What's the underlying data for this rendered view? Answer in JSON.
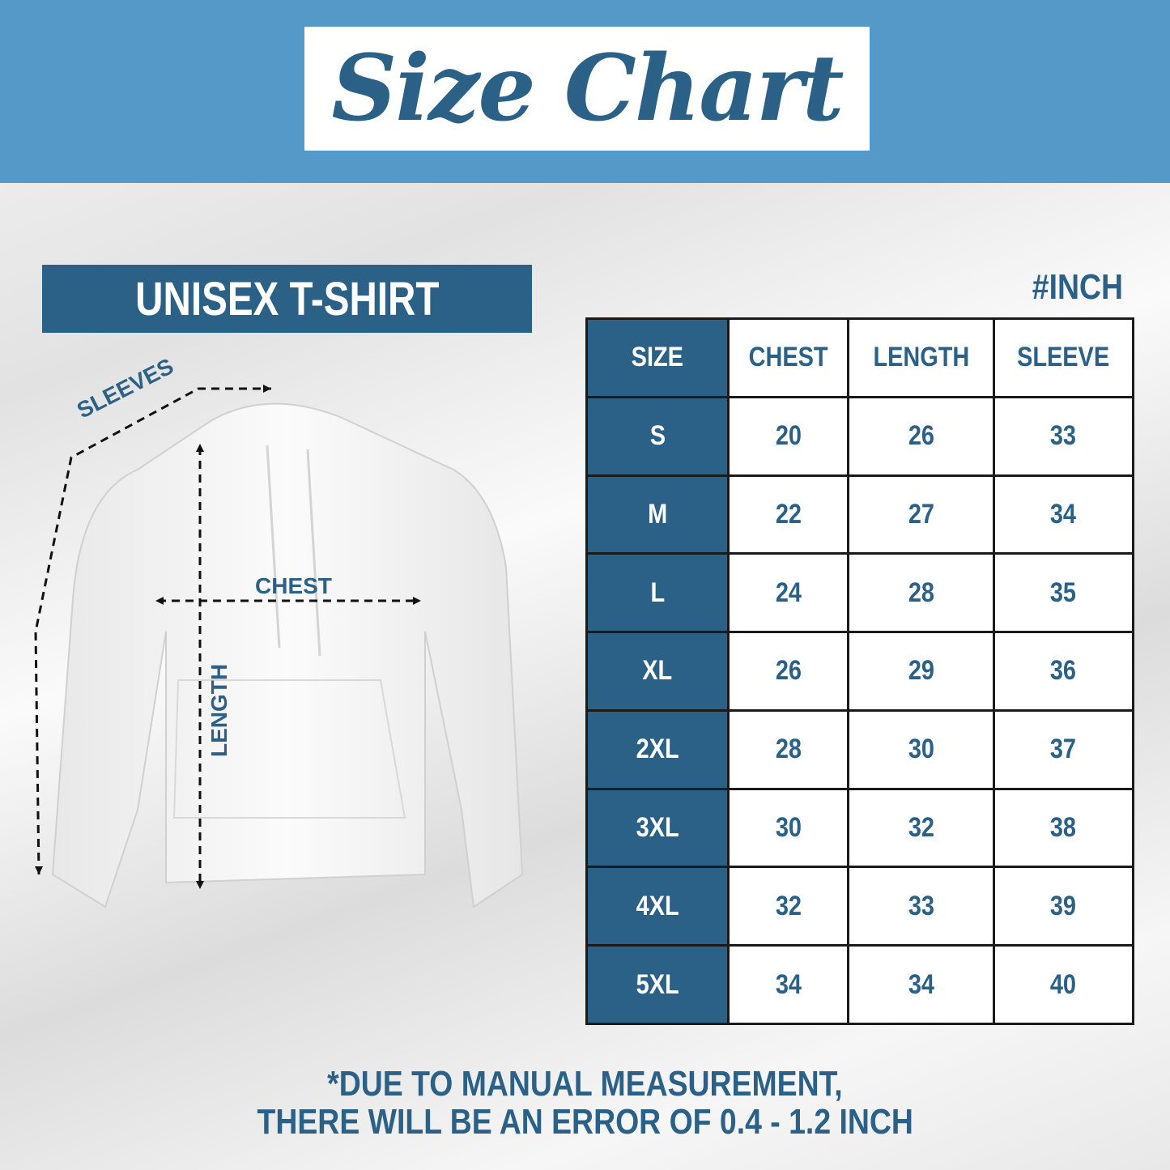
{
  "header": {
    "title": "Size Chart"
  },
  "product_label": "UNISEX T-SHIRT",
  "unit_label": "#INCH",
  "diagram": {
    "sleeves": "SLEEVES",
    "chest": "CHEST",
    "length": "LENGTH"
  },
  "table": {
    "headers": [
      "SIZE",
      "CHEST",
      "LENGTH",
      "SLEEVE"
    ],
    "rows": [
      [
        "S",
        "20",
        "26",
        "33"
      ],
      [
        "M",
        "22",
        "27",
        "34"
      ],
      [
        "L",
        "24",
        "28",
        "35"
      ],
      [
        "XL",
        "26",
        "29",
        "36"
      ],
      [
        "2XL",
        "28",
        "30",
        "37"
      ],
      [
        "3XL",
        "30",
        "32",
        "38"
      ],
      [
        "4XL",
        "32",
        "33",
        "39"
      ],
      [
        "5XL",
        "34",
        "34",
        "40"
      ]
    ]
  },
  "note": {
    "line1": "*DUE TO MANUAL MEASUREMENT,",
    "line2": "THERE WILL BE AN ERROR OF 0.4 - 1.2 INCH"
  },
  "colors": {
    "banner": "#5499c7",
    "brand": "#2b6187"
  }
}
